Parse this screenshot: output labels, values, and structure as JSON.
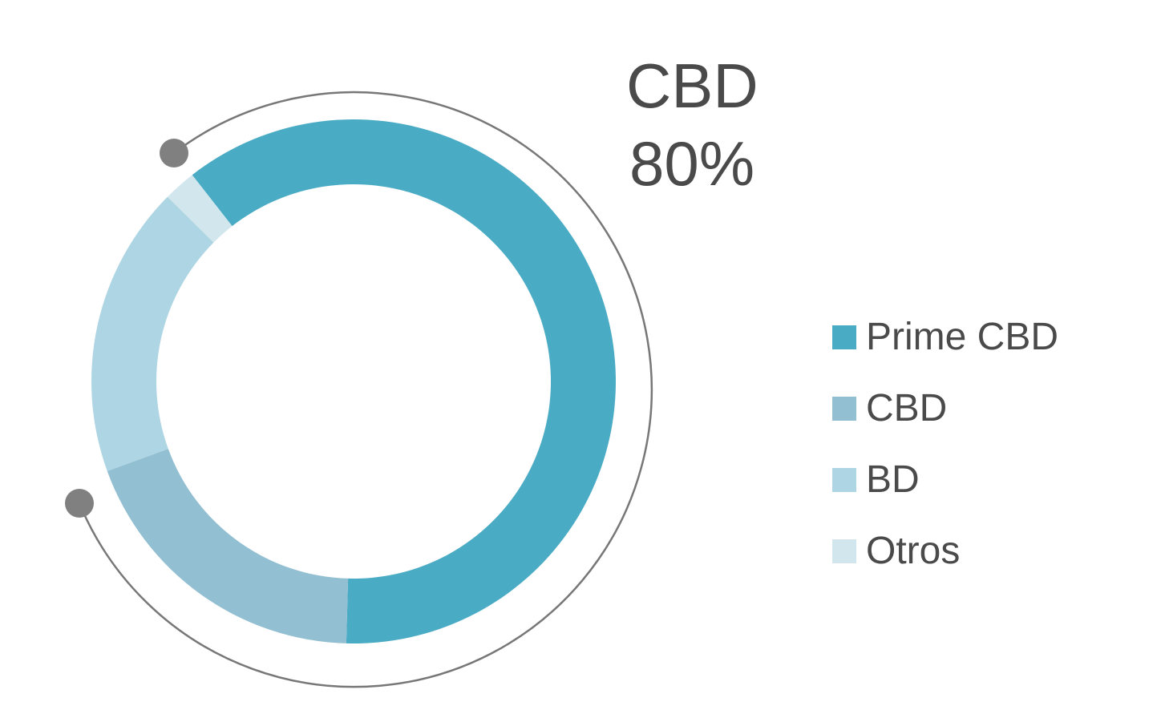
{
  "chart_data": {
    "type": "donut",
    "title": "",
    "series": [
      {
        "name": "Prime CBD",
        "value": 61,
        "color": "#4aabc5"
      },
      {
        "name": "CBD",
        "value": 19,
        "color": "#92bfd2"
      },
      {
        "name": "BD",
        "value": 18,
        "color": "#aed5e3"
      },
      {
        "name": "Otros",
        "value": 2,
        "color": "#d2e6ee"
      }
    ],
    "callout": {
      "label": "CBD",
      "value": "80%"
    },
    "legend_position": "right"
  }
}
